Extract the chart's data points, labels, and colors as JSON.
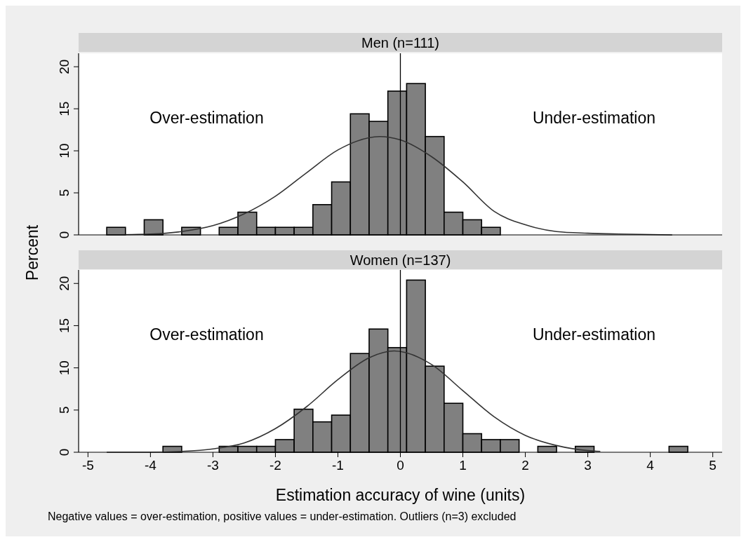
{
  "chart_data": [
    {
      "type": "histogram",
      "title": "Men (n=111)",
      "ylabel": "Percent",
      "xlim": [
        -5.15,
        5.15
      ],
      "ylim": [
        0,
        21.6
      ],
      "yticks": [
        0,
        5,
        10,
        15,
        20
      ],
      "tick_labels": "y",
      "grid": false,
      "ref_lines": [
        {
          "axis": "x",
          "value": 0,
          "color": "#000000"
        }
      ],
      "annotations": [
        "Over-estimation",
        "Under-estimation"
      ],
      "series": [
        {
          "color": "#808080",
          "bins": [
            -4.7,
            -4.4,
            -4.1,
            -3.8,
            -3.5,
            -3.2,
            -2.9,
            -2.6,
            -2.3,
            -2.0,
            -1.7,
            -1.4,
            -1.1,
            -0.8,
            -0.5,
            -0.2,
            0.1,
            0.4,
            0.7,
            1.0,
            1.3,
            1.6
          ],
          "values": [
            0.9,
            0,
            1.8,
            0,
            0.9,
            0,
            0.9,
            2.7,
            0.9,
            0.9,
            0.9,
            3.6,
            6.3,
            14.4,
            13.5,
            17.1,
            18.0,
            11.7,
            2.7,
            1.8,
            0.9
          ]
        },
        {
          "type": "line",
          "color": "#333333",
          "x": [
            -4.7,
            -4,
            -3.5,
            -3,
            -2.5,
            -2,
            -1.5,
            -1,
            -0.33,
            0,
            0.5,
            1,
            1.5,
            2,
            2.5,
            3,
            3.5,
            4.35
          ],
          "values": [
            0,
            0.1,
            0.4,
            1.1,
            2.5,
            4.6,
            7.4,
            10.1,
            11.7,
            11.3,
            9.3,
            6.3,
            2.8,
            1.2,
            0.4,
            0.2,
            0.1,
            0
          ]
        }
      ]
    },
    {
      "type": "histogram",
      "title": "Women (n=137)",
      "xlabel": "Estimation accuracy of wine (units)",
      "xlim": [
        -5.15,
        5.15
      ],
      "xticks": [
        -5,
        -4,
        -3,
        -2,
        -1,
        0,
        1,
        2,
        3,
        4,
        5
      ],
      "ylim": [
        0,
        21.6
      ],
      "yticks": [
        0,
        5,
        10,
        15,
        20
      ],
      "grid": false,
      "ref_lines": [
        {
          "axis": "x",
          "value": 0,
          "color": "#000000"
        }
      ],
      "annotations": [
        "Over-estimation",
        "Under-estimation",
        "Negative values = over-estimation, positive values = under-estimation. Outliers (n=3) excluded"
      ],
      "series": [
        {
          "color": "#808080",
          "bins": [
            -3.8,
            -3.5,
            -3.2,
            -2.9,
            -2.6,
            -2.3,
            -2.0,
            -1.7,
            -1.4,
            -1.1,
            -0.8,
            -0.5,
            -0.2,
            0.1,
            0.4,
            0.7,
            1.0,
            1.3,
            1.6,
            1.9,
            2.2,
            2.5,
            2.8,
            3.1,
            3.4,
            3.7,
            4.0,
            4.3,
            4.6
          ],
          "values": [
            0.7,
            0,
            0,
            0.7,
            0.7,
            0.7,
            1.5,
            5.1,
            3.6,
            4.4,
            11.7,
            14.6,
            12.4,
            20.4,
            10.2,
            5.8,
            2.2,
            1.5,
            1.5,
            0,
            0.7,
            0,
            0.7,
            0,
            0,
            0,
            0,
            0.7
          ]
        },
        {
          "type": "line",
          "color": "#333333",
          "x": [
            -4.7,
            -4,
            -3.5,
            -3,
            -2.5,
            -2,
            -1.5,
            -1,
            -0.5,
            -0.1,
            0.5,
            1,
            1.5,
            2,
            2.5,
            3,
            3.2
          ],
          "values": [
            0,
            0,
            0.1,
            0.4,
            1.1,
            2.8,
            5.4,
            8.6,
            11.2,
            12,
            10.4,
            7.3,
            4.2,
            2.0,
            0.8,
            0.2,
            0.1
          ]
        }
      ]
    }
  ]
}
